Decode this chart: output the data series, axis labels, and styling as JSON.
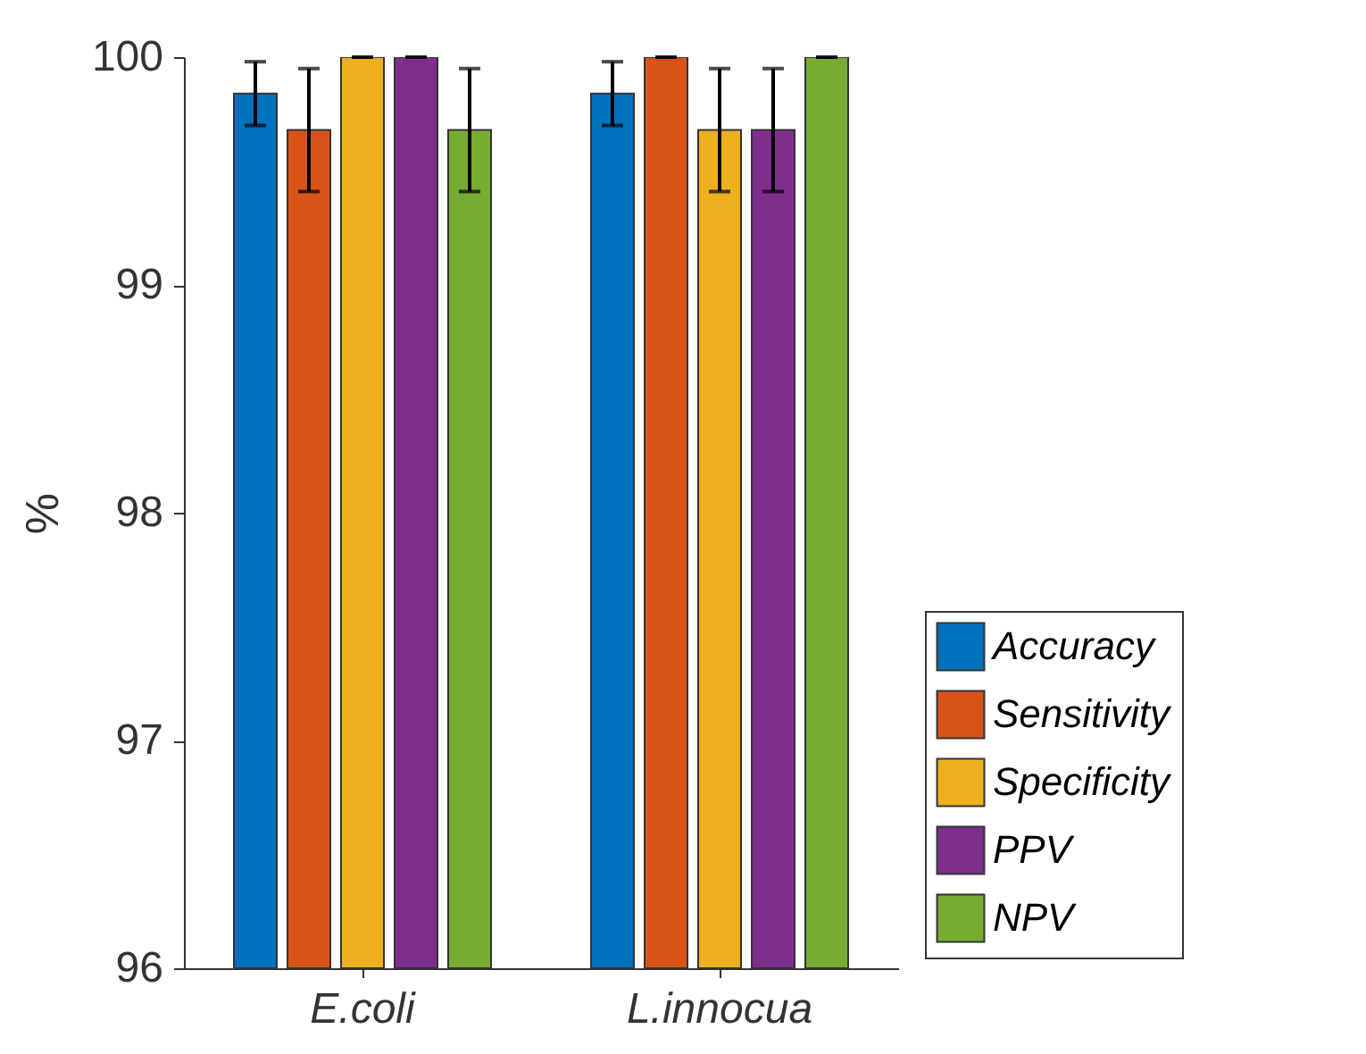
{
  "chart_data": {
    "type": "bar",
    "ylabel": "%",
    "categories": [
      "E.coli",
      "L.innocua"
    ],
    "series": [
      {
        "name": "Accuracy",
        "color": "#0072bd",
        "values": [
          99.84,
          99.84
        ],
        "errors": [
          0.14,
          0.14
        ]
      },
      {
        "name": "Sensitivity",
        "color": "#d95319",
        "values": [
          99.68,
          100
        ],
        "errors": [
          0.27,
          0
        ]
      },
      {
        "name": "Specificity",
        "color": "#edb120",
        "values": [
          100,
          99.68
        ],
        "errors": [
          0,
          0.27
        ]
      },
      {
        "name": "PPV",
        "color": "#7e2f8e",
        "values": [
          100,
          99.68
        ],
        "errors": [
          0,
          0.27
        ]
      },
      {
        "name": "NPV",
        "color": "#77ac30",
        "values": [
          99.68,
          100
        ],
        "errors": [
          0.27,
          0
        ]
      }
    ],
    "ylim": [
      96,
      100
    ],
    "yticks": [
      96,
      97,
      98,
      99,
      100
    ],
    "grid": false,
    "legend": "bottom right"
  }
}
